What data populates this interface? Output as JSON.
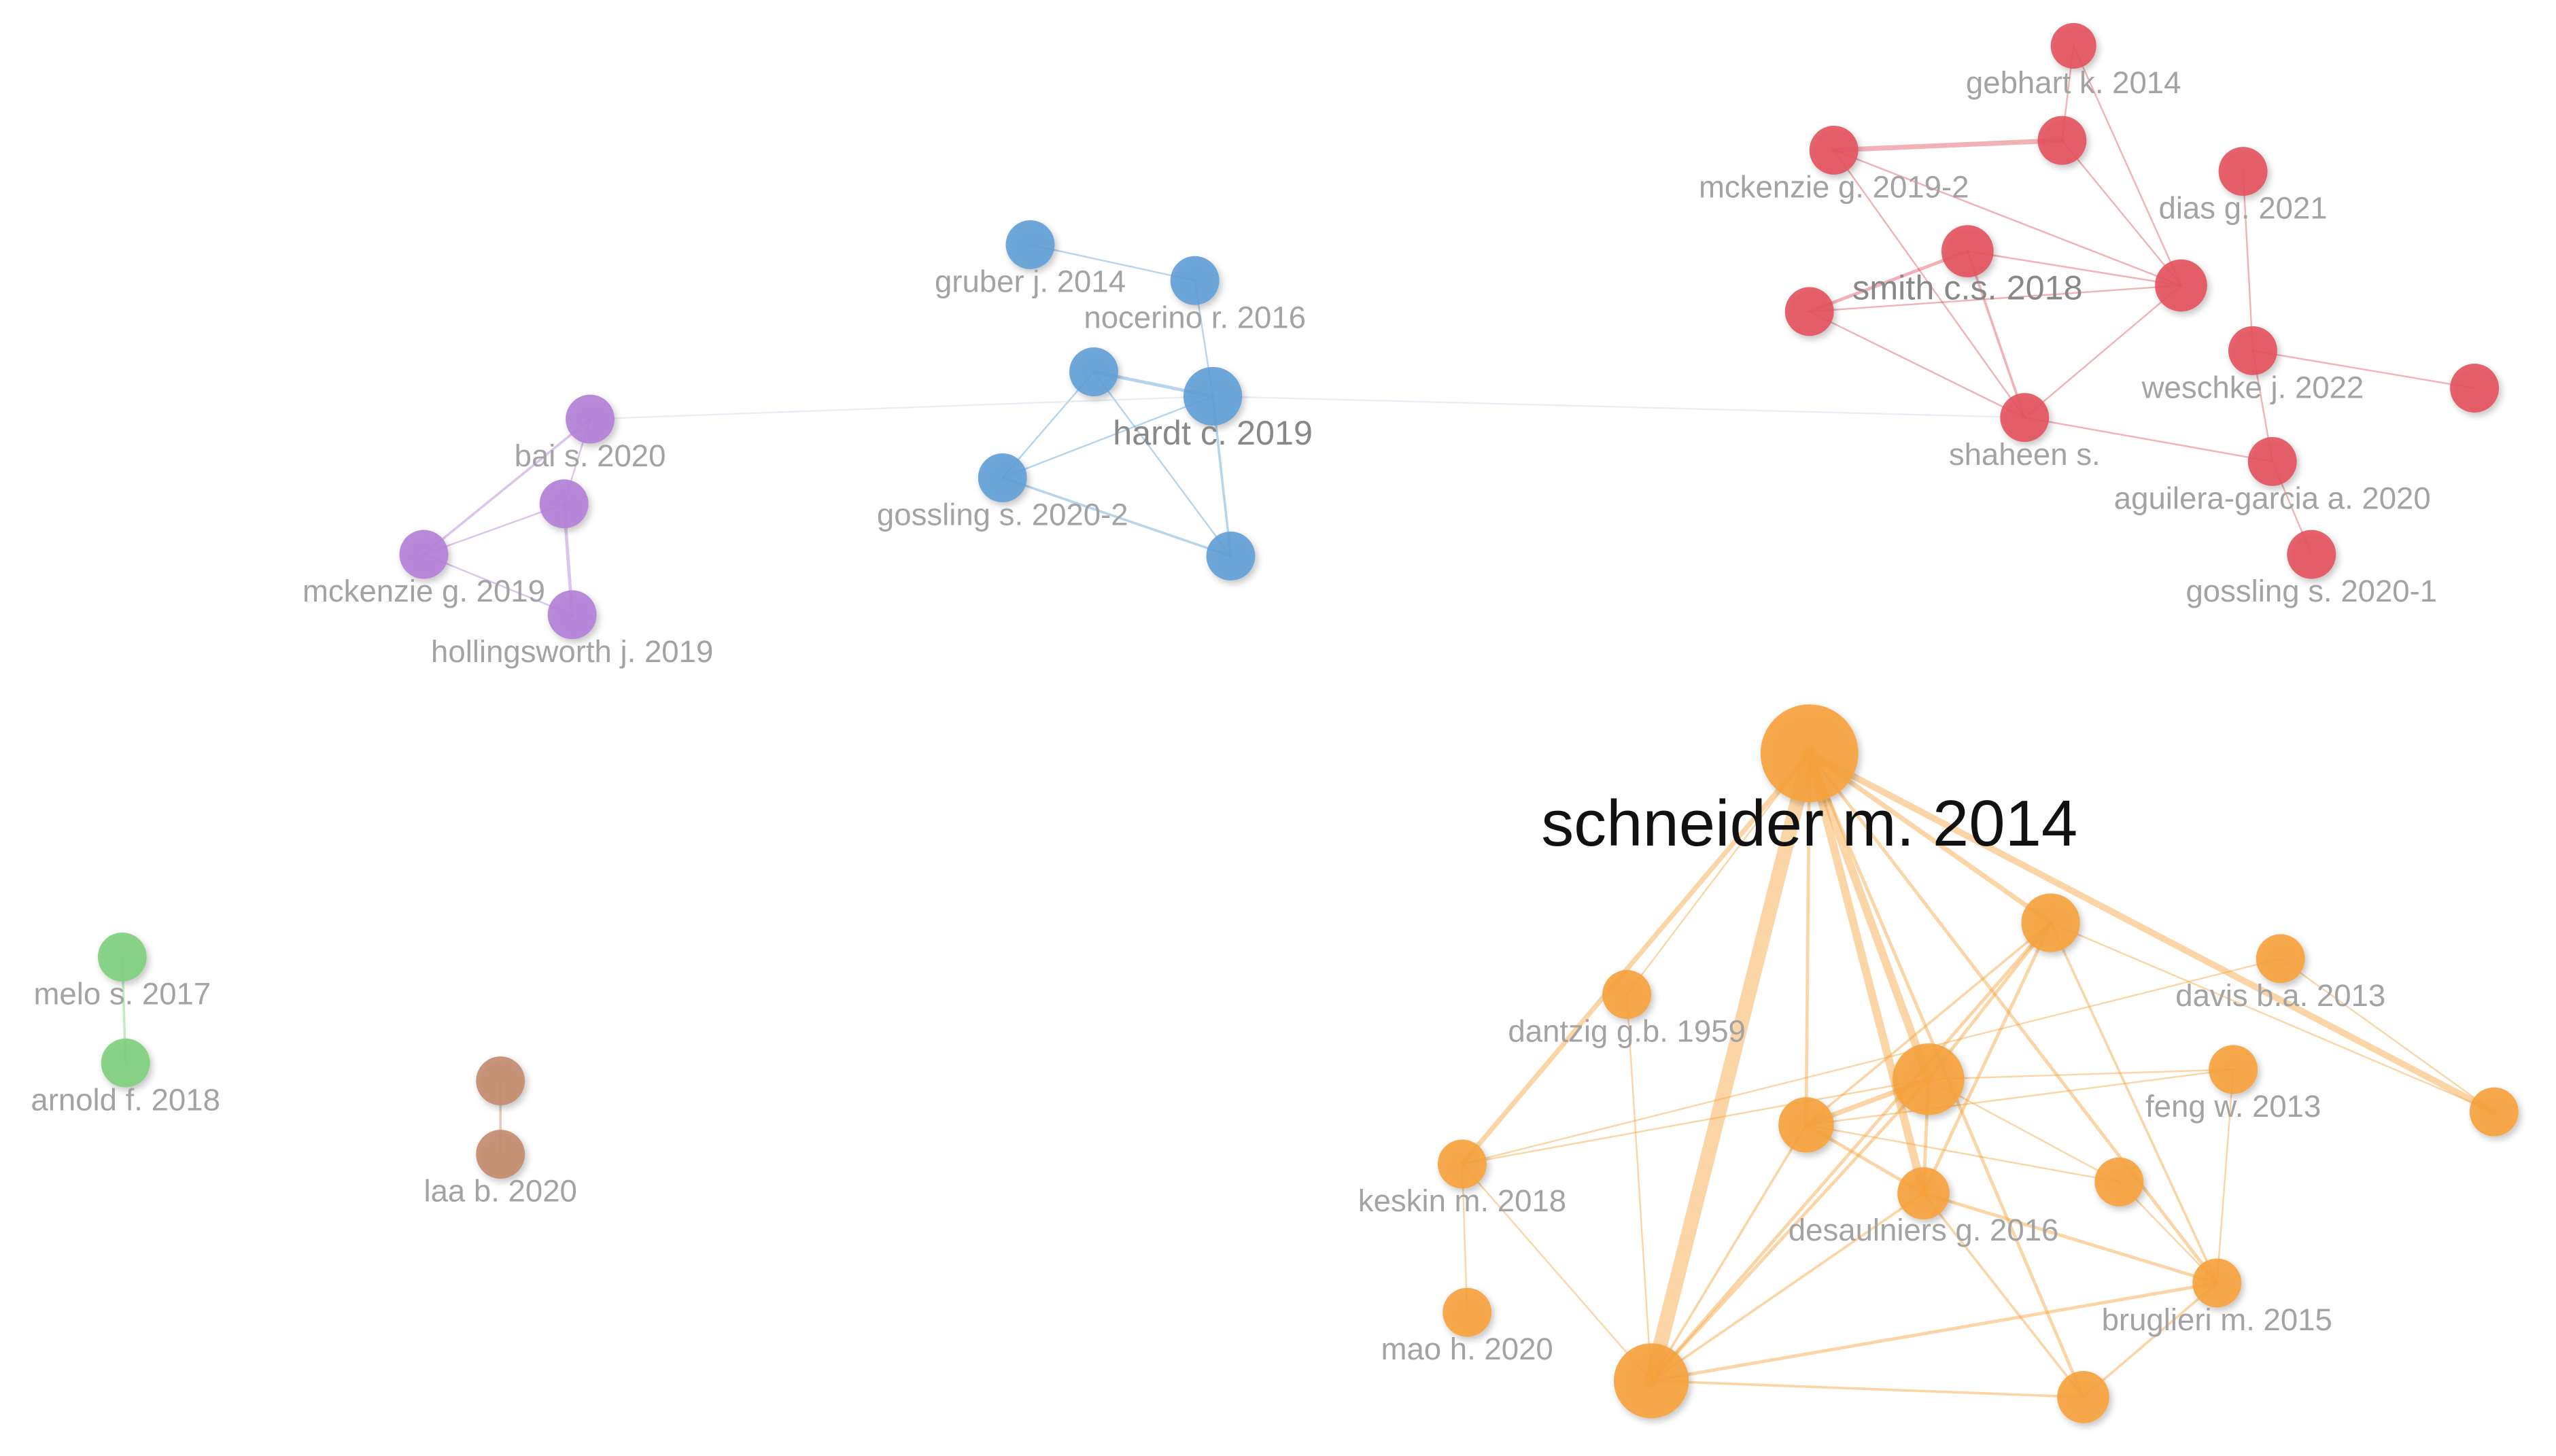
{
  "nodes": [
    {
      "label": "gebhart k. 2014"
    },
    {
      "label": "mckenzie g. 2019-2"
    },
    {
      "label": "dias g. 2021"
    },
    {
      "label": "smith c.s. 2018"
    },
    {
      "label": "weschke j. 2022"
    },
    {
      "label": "shaheen s."
    },
    {
      "label": "aguilera-garcia a. 2020"
    },
    {
      "label": "gossling s. 2020-1"
    },
    {
      "label": "gruber j. 2014"
    },
    {
      "label": "nocerino r. 2016"
    },
    {
      "label": "hardt c. 2019"
    },
    {
      "label": "gossling s. 2020-2"
    },
    {
      "label": "bai s. 2020"
    },
    {
      "label": "mckenzie g. 2019"
    },
    {
      "label": "hollingsworth j. 2019"
    },
    {
      "label": "melo s. 2017"
    },
    {
      "label": "arnold f. 2018"
    },
    {
      "label": "laa b. 2020"
    },
    {
      "label": "schneider m. 2014"
    },
    {
      "label": "davis b.a. 2013"
    },
    {
      "label": "dantzig g.b. 1959"
    },
    {
      "label": "feng w. 2013"
    },
    {
      "label": "keskin m. 2018"
    },
    {
      "label": "desaulniers g. 2016"
    },
    {
      "label": "bruglieri m. 2015"
    },
    {
      "label": "mao h. 2020"
    }
  ]
}
